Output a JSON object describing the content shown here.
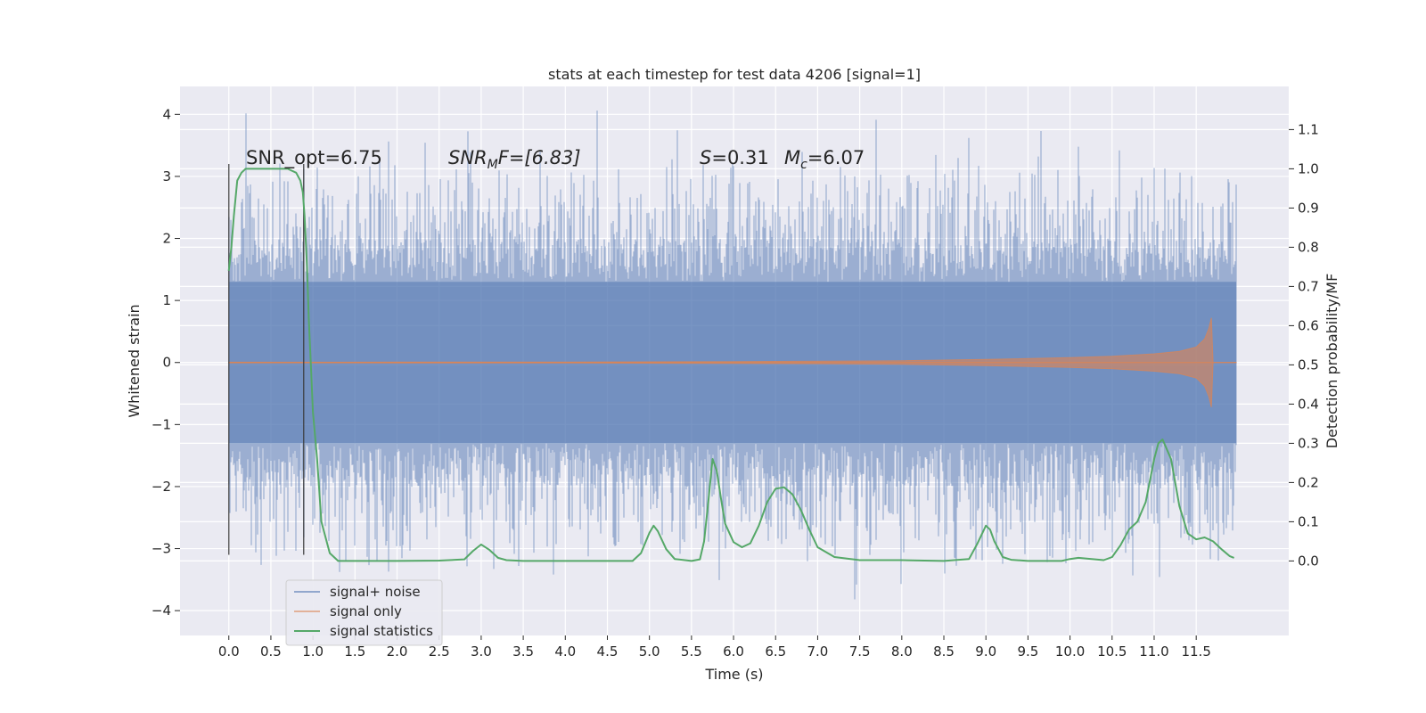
{
  "chart_data": {
    "type": "line",
    "title": "stats at each timestep for test data 4206 [signal=1]",
    "xlabel": "Time (s)",
    "ylabel_left": "Whitened strain",
    "ylabel_right": "Detection probability/MF",
    "xlim": [
      -0.58,
      12.6
    ],
    "ylim_left": [
      -4.4,
      4.45
    ],
    "ylim_right": [
      -0.19,
      1.21
    ],
    "x_ticks": [
      0.0,
      0.5,
      1.0,
      1.5,
      2.0,
      2.5,
      3.0,
      3.5,
      4.0,
      4.5,
      5.0,
      5.5,
      6.0,
      6.5,
      7.0,
      7.5,
      8.0,
      8.5,
      9.0,
      9.5,
      10.0,
      10.5,
      11.0,
      11.5
    ],
    "x_tick_labels": [
      "0.0",
      "0.5",
      "1.0",
      "1.5",
      "2.0",
      "2.5",
      "3.0",
      "3.5",
      "4.0",
      "4.5",
      "5.0",
      "5.5",
      "6.0",
      "6.5",
      "7.0",
      "7.5",
      "8.0",
      "8.5",
      "9.0",
      "9.5",
      "10.0",
      "10.5",
      "11.0",
      "11.5"
    ],
    "y_left_ticks": [
      4,
      3,
      2,
      1,
      0,
      -1,
      -2,
      -3,
      -4
    ],
    "y_left_tick_labels": [
      "4",
      "3",
      "2",
      "1",
      "0",
      "−1",
      "−2",
      "−3",
      "−4"
    ],
    "y_right_ticks": [
      1.1,
      1.0,
      0.9,
      0.8,
      0.7,
      0.6,
      0.5,
      0.4,
      0.3,
      0.2,
      0.1,
      0.0
    ],
    "y_right_tick_labels": [
      "1.1",
      "1.0",
      "0.9",
      "0.8",
      "0.7",
      "0.6",
      "0.5",
      "0.4",
      "0.3",
      "0.2",
      "0.1",
      "0.0"
    ],
    "grid": true,
    "legend_position": "lower-left",
    "annotations": {
      "snr_opt": "SNR_opt=6.75",
      "snr_mf_base": "SNR",
      "snr_mf_sub": "M",
      "snr_mf_rest": "F=[6.83]",
      "s_base": "S",
      "s_rest": "=0.31",
      "mc_base": "M",
      "mc_sub": "c",
      "mc_rest": "=6.07"
    },
    "series": [
      {
        "name": "signal+ noise",
        "color": "#4c72b0",
        "kind": "noisy-strain",
        "x_range": [
          0.0,
          11.98
        ],
        "core_amplitude": 1.3,
        "peak_range": [
          -4.0,
          4.1
        ]
      },
      {
        "name": "signal only",
        "color": "#dd8452",
        "kind": "chirp",
        "x": [
          0.0,
          2.0,
          4.0,
          6.0,
          7.0,
          8.0,
          9.0,
          10.0,
          10.5,
          11.0,
          11.3,
          11.5,
          11.6,
          11.65,
          11.68,
          11.7,
          11.98
        ],
        "amplitude": [
          0.005,
          0.006,
          0.008,
          0.015,
          0.02,
          0.03,
          0.05,
          0.08,
          0.1,
          0.14,
          0.18,
          0.25,
          0.38,
          0.55,
          0.72,
          0.0,
          0.0
        ]
      },
      {
        "name": "signal statistics",
        "color": "#55a868",
        "axis": "right",
        "x": [
          0.0,
          0.03,
          0.06,
          0.1,
          0.15,
          0.2,
          0.3,
          0.5,
          0.7,
          0.8,
          0.85,
          0.88,
          0.9,
          0.93,
          0.95,
          0.98,
          1.0,
          1.05,
          1.1,
          1.2,
          1.3,
          1.5,
          2.0,
          2.5,
          2.8,
          2.9,
          3.0,
          3.1,
          3.2,
          3.3,
          3.5,
          4.0,
          4.5,
          4.8,
          4.9,
          5.0,
          5.05,
          5.1,
          5.2,
          5.3,
          5.5,
          5.6,
          5.65,
          5.7,
          5.75,
          5.8,
          5.85,
          5.9,
          6.0,
          6.1,
          6.2,
          6.3,
          6.4,
          6.5,
          6.6,
          6.7,
          6.8,
          6.9,
          7.0,
          7.2,
          7.5,
          8.0,
          8.5,
          8.8,
          8.9,
          9.0,
          9.05,
          9.1,
          9.15,
          9.2,
          9.3,
          9.5,
          9.9,
          10.0,
          10.1,
          10.3,
          10.4,
          10.5,
          10.6,
          10.7,
          10.8,
          10.9,
          11.0,
          11.05,
          11.1,
          11.2,
          11.3,
          11.4,
          11.5,
          11.6,
          11.7,
          11.8,
          11.9,
          11.95
        ],
        "values": [
          0.74,
          0.8,
          0.88,
          0.97,
          0.99,
          1.0,
          1.0,
          1.0,
          1.0,
          0.99,
          0.97,
          0.94,
          0.88,
          0.75,
          0.62,
          0.48,
          0.38,
          0.26,
          0.1,
          0.02,
          0.0,
          0.0,
          0.0,
          0.001,
          0.004,
          0.025,
          0.042,
          0.028,
          0.008,
          0.002,
          0.0,
          0.0,
          0.0,
          0.0,
          0.02,
          0.072,
          0.09,
          0.076,
          0.03,
          0.005,
          0.0,
          0.004,
          0.05,
          0.15,
          0.26,
          0.23,
          0.16,
          0.095,
          0.048,
          0.035,
          0.045,
          0.09,
          0.15,
          0.184,
          0.188,
          0.17,
          0.13,
          0.08,
          0.035,
          0.01,
          0.002,
          0.002,
          0.0,
          0.005,
          0.045,
          0.09,
          0.08,
          0.05,
          0.03,
          0.01,
          0.003,
          0.0,
          0.0,
          0.005,
          0.008,
          0.004,
          0.002,
          0.01,
          0.04,
          0.08,
          0.1,
          0.15,
          0.26,
          0.3,
          0.31,
          0.26,
          0.14,
          0.07,
          0.055,
          0.06,
          0.05,
          0.03,
          0.012,
          0.008
        ]
      }
    ],
    "vertical_markers": [
      0.0,
      0.89
    ]
  }
}
